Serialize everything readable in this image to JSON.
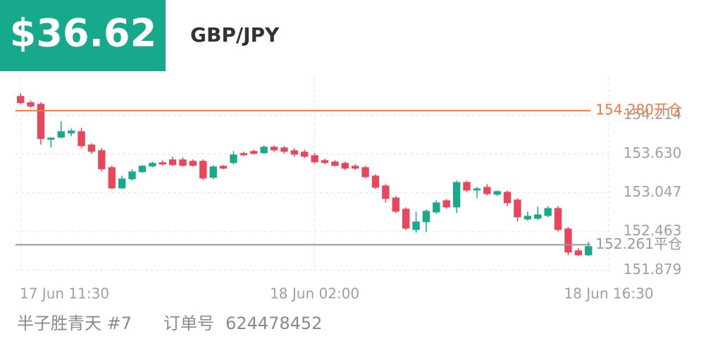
{
  "header": {
    "amount": "$36.62"
  },
  "footer": {
    "user": "半子胜青天 #7",
    "order_label": "订单号",
    "order_number": "624478452"
  },
  "chart_data": {
    "type": "candlestick",
    "title": "GBP/JPY",
    "x": [
      0,
      1,
      2,
      3,
      4,
      5,
      6,
      7,
      8,
      9,
      10,
      11,
      12,
      13,
      14,
      15,
      16,
      17,
      18,
      19,
      20,
      21,
      22,
      23,
      24,
      25,
      26,
      27,
      28,
      29,
      30,
      31,
      32,
      33,
      34,
      35,
      36,
      37,
      38,
      39,
      40,
      41,
      42,
      43,
      44,
      45,
      46,
      47,
      48,
      49,
      50,
      51,
      52,
      53,
      54,
      55,
      56
    ],
    "open": [
      154.501,
      154.406,
      154.384,
      153.843,
      153.875,
      153.938,
      153.97,
      153.769,
      153.684,
      153.429,
      153.11,
      153.248,
      153.355,
      153.44,
      153.503,
      153.546,
      153.546,
      153.524,
      153.524,
      153.27,
      153.45,
      153.493,
      153.641,
      153.673,
      153.641,
      153.737,
      153.726,
      153.684,
      153.662,
      153.609,
      153.535,
      153.514,
      153.493,
      153.45,
      153.429,
      153.302,
      153.153,
      152.972,
      152.803,
      152.484,
      152.601,
      152.749,
      152.93,
      152.824,
      153.206,
      153.079,
      153.132,
      153.015,
      153.057,
      152.941,
      152.643,
      152.654,
      152.696,
      152.813,
      152.505,
      152.176,
      152.102
    ],
    "high": [
      154.544,
      154.437,
      154.406,
      153.875,
      154.119,
      154.013,
      154.023,
      153.79,
      153.716,
      153.45,
      153.302,
      153.397,
      153.461,
      153.514,
      153.535,
      153.588,
      153.578,
      153.546,
      153.546,
      153.461,
      153.461,
      153.673,
      153.662,
      153.694,
      153.758,
      153.758,
      153.747,
      153.716,
      153.694,
      153.641,
      153.556,
      153.535,
      153.514,
      153.471,
      153.45,
      153.323,
      153.174,
      152.994,
      152.824,
      152.76,
      152.792,
      152.93,
      152.951,
      153.227,
      153.227,
      153.132,
      153.174,
      153.079,
      153.079,
      152.962,
      152.76,
      152.834,
      152.845,
      152.845,
      152.527,
      152.208,
      152.304
    ],
    "low": [
      154.374,
      154.321,
      153.769,
      153.726,
      153.864,
      153.896,
      153.716,
      153.631,
      153.365,
      153.1,
      153.1,
      153.227,
      153.344,
      153.429,
      153.45,
      153.45,
      153.44,
      153.44,
      153.238,
      153.248,
      153.397,
      153.471,
      153.599,
      153.62,
      153.631,
      153.662,
      153.631,
      153.588,
      153.567,
      153.482,
      153.471,
      153.44,
      153.386,
      153.386,
      153.259,
      153.1,
      152.898,
      152.739,
      152.484,
      152.442,
      152.452,
      152.728,
      152.803,
      152.739,
      153.057,
      152.962,
      153.004,
      152.994,
      152.845,
      152.611,
      152.622,
      152.633,
      152.675,
      152.463,
      152.102,
      152.091,
      152.091
    ],
    "close": [
      154.395,
      154.342,
      153.854,
      153.875,
      153.97,
      153.981,
      153.747,
      153.662,
      153.397,
      153.11,
      153.259,
      153.365,
      153.45,
      153.493,
      153.471,
      153.461,
      153.45,
      153.45,
      153.259,
      153.44,
      153.408,
      153.62,
      153.609,
      153.631,
      153.737,
      153.684,
      153.662,
      153.62,
      153.588,
      153.503,
      153.493,
      153.45,
      153.408,
      153.408,
      153.28,
      153.121,
      152.951,
      152.76,
      152.505,
      152.611,
      152.771,
      152.898,
      152.824,
      153.206,
      153.079,
      153.11,
      153.025,
      153.068,
      152.887,
      152.675,
      152.696,
      152.718,
      152.813,
      152.484,
      152.144,
      152.102,
      152.24
    ],
    "up_color": "#1aa98b",
    "down_color": "#e8465a",
    "xlim": [
      -0.5,
      58
    ],
    "xticks": [
      {
        "value": 0,
        "label": "17 Jun  11:30"
      },
      {
        "value": 29,
        "label": "18 Jun  02:00"
      },
      {
        "value": 58,
        "label": "18 Jun  16:30"
      }
    ],
    "ylim": [
      151.83,
      154.78
    ],
    "yticks": [
      151.879,
      152.463,
      153.047,
      {
        "value": 153.63,
        "label": "153.630"
      },
      154.214
    ],
    "grid": true,
    "lines": [
      {
        "value": 154.28,
        "label": "154.280开仓",
        "color": "#f47a3c"
      },
      {
        "value": 152.261,
        "label": "152.261平仓",
        "color": "#999999"
      }
    ]
  }
}
